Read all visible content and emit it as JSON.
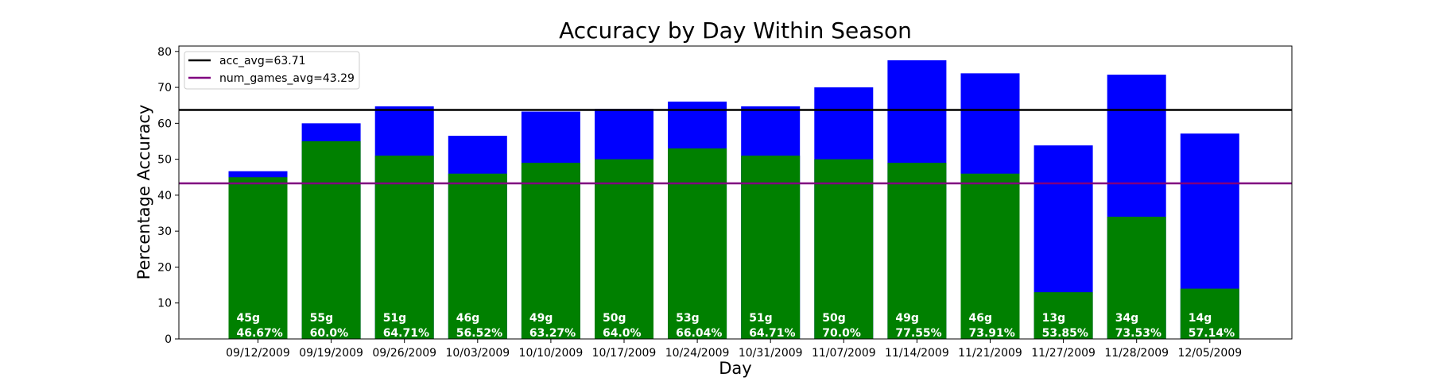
{
  "chart_data": {
    "type": "bar",
    "title": "Accuracy by Day Within Season",
    "xlabel": "Day",
    "ylabel": "Percentage Accuracy",
    "ylim": [
      0,
      81.5
    ],
    "yticks": [
      0,
      10,
      20,
      30,
      40,
      50,
      60,
      70,
      80
    ],
    "categories": [
      "09/12/2009",
      "09/19/2009",
      "09/26/2009",
      "10/03/2009",
      "10/10/2009",
      "10/17/2009",
      "10/24/2009",
      "10/31/2009",
      "11/07/2009",
      "11/14/2009",
      "11/21/2009",
      "11/27/2009",
      "11/28/2009",
      "12/05/2009"
    ],
    "series": [
      {
        "name": "num_games",
        "color": "#008000",
        "values": [
          45,
          55,
          51,
          46,
          49,
          50,
          53,
          51,
          50,
          49,
          46,
          13,
          34,
          14
        ]
      },
      {
        "name": "accuracy",
        "color": "#0000ff",
        "values": [
          46.67,
          60.0,
          64.71,
          56.52,
          63.27,
          64.0,
          66.04,
          64.71,
          70.0,
          77.55,
          73.91,
          53.85,
          73.53,
          57.14
        ]
      }
    ],
    "bar_labels": {
      "games": [
        "45g",
        "55g",
        "51g",
        "46g",
        "49g",
        "50g",
        "53g",
        "51g",
        "50g",
        "49g",
        "46g",
        "13g",
        "34g",
        "14g"
      ],
      "accuracy": [
        "46.67%",
        "60.0%",
        "64.71%",
        "56.52%",
        "63.27%",
        "64.0%",
        "66.04%",
        "64.71%",
        "70.0%",
        "77.55%",
        "73.91%",
        "53.85%",
        "73.53%",
        "57.14%"
      ]
    },
    "reference_lines": [
      {
        "label": "acc_avg=63.71",
        "value": 63.71,
        "color": "#000000"
      },
      {
        "label": "num_games_avg=43.29",
        "value": 43.29,
        "color": "#800080"
      }
    ],
    "legend_position": "upper-left",
    "grid": false
  }
}
